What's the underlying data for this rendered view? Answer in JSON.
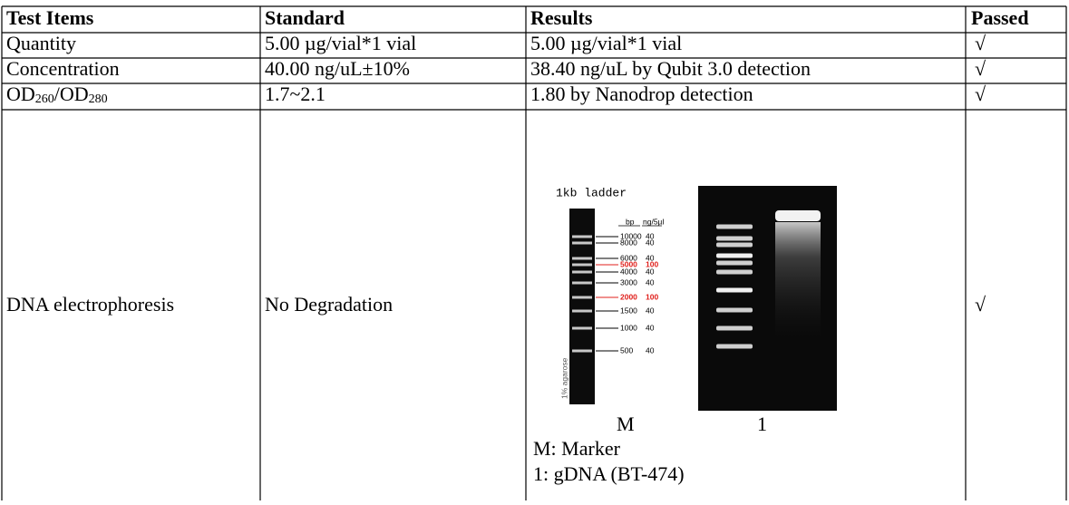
{
  "table": {
    "header": [
      "Test Items",
      "Standard",
      "Results",
      "Passed"
    ],
    "rows": [
      [
        "Quantity",
        "5.00 µg/vial*1 vial",
        "5.00 µg/vial*1 vial",
        "√"
      ],
      [
        "Concentration",
        "40.00 ng/uL±10%",
        "38.40 ng/uL by Qubit 3.0 detection",
        "√"
      ],
      [
        {
          "a": "OD",
          "b": "260",
          "c": "/OD",
          "d": "280"
        },
        "1.7~2.1",
        "1.80 by Nanodrop detection",
        "√"
      ],
      [
        "DNA electrophoresis",
        "No Degradation",
        {
          "ladder_title": "1kb ladder",
          "bp_header": "bp",
          "ng_header": "ng/5µl",
          "bands": [
            {
              "bp": "10000",
              "ng": "40"
            },
            {
              "bp": "8000",
              "ng": "40"
            },
            {
              "bp": "6000",
              "ng": "40"
            },
            {
              "bp": "5000",
              "ng": "100",
              "color": "#e0201c"
            },
            {
              "bp": "4000",
              "ng": "40"
            },
            {
              "bp": "3000",
              "ng": "40"
            },
            {
              "bp": "2000",
              "ng": "100",
              "color": "#e0201c"
            },
            {
              "bp": "1500",
              "ng": "40"
            },
            {
              "bp": "1000",
              "ng": "40"
            },
            {
              "bp": "500",
              "ng": "40"
            }
          ],
          "agarose_label": "1% agarose",
          "lane_labels": [
            "M",
            "1"
          ],
          "legend": [
            "M: Marker",
            "1: gDNA (BT-474)"
          ]
        },
        "√"
      ]
    ]
  }
}
